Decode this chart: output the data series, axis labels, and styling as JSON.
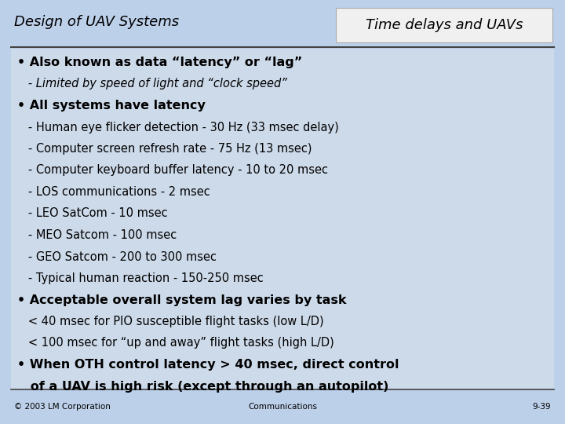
{
  "background_color": "#bdd0ea",
  "title_left": "Design of UAV Systems",
  "title_right": "Time delays and UAVs",
  "title_right_bg": "#f0f0f0",
  "header_line_color": "#444444",
  "footer_line_color": "#444444",
  "footer_left": "© 2003 LM Corporation",
  "footer_center": "Communications",
  "footer_right": "9-39",
  "content_bg": "#cddaea",
  "content_lines": [
    {
      "text": "• Also known as data “latency” or “lag”",
      "bold": true,
      "italic": false,
      "size": 11.5
    },
    {
      "text": "   - Limited by speed of light and “clock speed”",
      "bold": false,
      "italic": true,
      "size": 10.5
    },
    {
      "text": "• All systems have latency",
      "bold": true,
      "italic": false,
      "size": 11.5
    },
    {
      "text": "   - Human eye flicker detection - 30 Hz (33 msec delay)",
      "bold": false,
      "italic": false,
      "size": 10.5
    },
    {
      "text": "   - Computer screen refresh rate - 75 Hz (13 msec)",
      "bold": false,
      "italic": false,
      "size": 10.5
    },
    {
      "text": "   - Computer keyboard buffer latency - 10 to 20 msec",
      "bold": false,
      "italic": false,
      "size": 10.5
    },
    {
      "text": "   - LOS communications - 2 msec",
      "bold": false,
      "italic": false,
      "size": 10.5
    },
    {
      "text": "   - LEO SatCom - 10 msec",
      "bold": false,
      "italic": false,
      "size": 10.5
    },
    {
      "text": "   - MEO Satcom - 100 msec",
      "bold": false,
      "italic": false,
      "size": 10.5
    },
    {
      "text": "   - GEO Satcom - 200 to 300 msec",
      "bold": false,
      "italic": false,
      "size": 10.5
    },
    {
      "text": "   - Typical human reaction - 150-250 msec",
      "bold": false,
      "italic": false,
      "size": 10.5
    },
    {
      "text": "• Acceptable overall system lag varies by task",
      "bold": true,
      "italic": false,
      "size": 11.5
    },
    {
      "text": "   < 40 msec for PIO susceptible flight tasks (low L/D)",
      "bold": false,
      "italic": false,
      "size": 10.5
    },
    {
      "text": "   < 100 msec for “up and away” flight tasks (high L/D)",
      "bold": false,
      "italic": false,
      "size": 10.5
    },
    {
      "text": "• When OTH control latency > 40 msec, direct control",
      "bold": true,
      "italic": false,
      "size": 11.5
    },
    {
      "text": "   of a UAV is high risk (except through an autopilot)",
      "bold": true,
      "italic": false,
      "size": 11.5
    }
  ],
  "figsize": [
    7.2,
    5.4
  ],
  "dpi": 100
}
